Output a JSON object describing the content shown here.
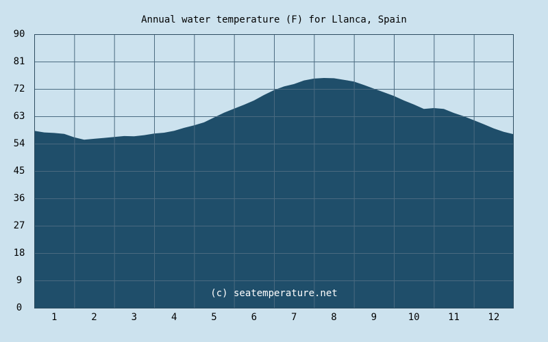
{
  "chart_data": {
    "type": "area",
    "title": "Annual water temperature (F) for Llanca, Spain",
    "watermark": "(c) seatemperature.net",
    "xlabel": "",
    "ylabel": "",
    "x_tick_labels": [
      "1",
      "2",
      "3",
      "4",
      "5",
      "6",
      "7",
      "8",
      "9",
      "10",
      "11",
      "12"
    ],
    "y_tick_labels": [
      "0",
      "9",
      "18",
      "27",
      "36",
      "45",
      "54",
      "63",
      "72",
      "81",
      "90"
    ],
    "ylim": [
      0,
      90
    ],
    "xlim": [
      0.5,
      12.5
    ],
    "grid": true,
    "colors": {
      "background": "#cce2ee",
      "plot_background": "#cce2ee",
      "fill": "#1f4e6a",
      "grid": "#4a6a80",
      "axis": "#2b4a5e"
    },
    "series": [
      {
        "x": [
          0.5,
          0.75,
          1.0,
          1.25,
          1.5,
          1.75,
          2.0,
          2.25,
          2.5,
          2.75,
          3.0,
          3.25,
          3.5,
          3.75,
          4.0,
          4.25,
          4.5,
          4.75,
          5.0,
          5.25,
          5.5,
          5.75,
          6.0,
          6.25,
          6.5,
          6.75,
          7.0,
          7.25,
          7.5,
          7.75,
          8.0,
          8.25,
          8.5,
          8.75,
          9.0,
          9.25,
          9.5,
          9.75,
          10.0,
          10.25,
          10.5,
          10.75,
          11.0,
          11.25,
          11.5,
          11.75,
          12.0,
          12.25,
          12.5
        ],
        "values": [
          58.2,
          57.7,
          57.5,
          57.2,
          56.1,
          55.3,
          55.6,
          55.9,
          56.2,
          56.5,
          56.4,
          56.8,
          57.3,
          57.6,
          58.2,
          59.2,
          60.0,
          61.0,
          62.6,
          64.2,
          65.5,
          66.8,
          68.2,
          70.0,
          71.6,
          72.8,
          73.6,
          74.8,
          75.4,
          75.6,
          75.5,
          75.0,
          74.4,
          73.3,
          72.1,
          70.9,
          69.7,
          68.2,
          66.9,
          65.4,
          65.7,
          65.4,
          64.1,
          63.0,
          61.7,
          60.4,
          59.0,
          57.9,
          57.1
        ]
      }
    ]
  }
}
